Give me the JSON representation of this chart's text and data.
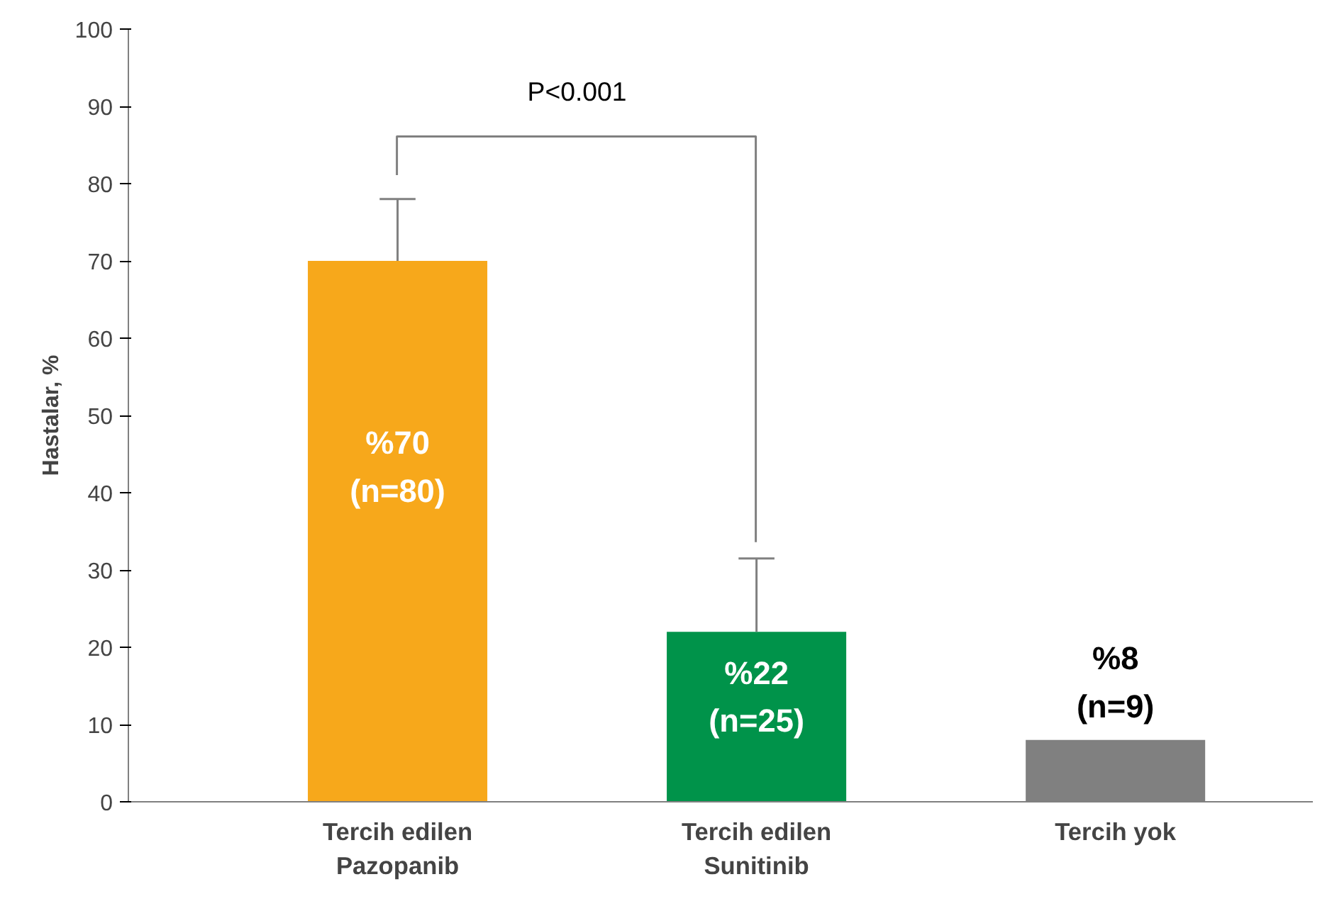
{
  "chart_data": {
    "type": "bar",
    "ylabel": "Hastalar, %",
    "categories": [
      "Tercih edilen\nPazopanib",
      "Tercih edilen\nSunitinib",
      "Tercih yok"
    ],
    "values": [
      70,
      22,
      8
    ],
    "colors": [
      "#f7a81b",
      "#00934a",
      "#808080"
    ],
    "value_labels": [
      "%70\n(n=80)",
      "%22\n(n=25)",
      "%8\n(n=9)"
    ],
    "errors": [
      [
        70,
        78
      ],
      [
        22,
        31.5
      ],
      null
    ],
    "ylim": [
      0,
      100
    ],
    "yticks": [
      0,
      10,
      20,
      30,
      40,
      50,
      60,
      70,
      80,
      90,
      100
    ],
    "grid": false,
    "annotations": [
      "P<0.001"
    ]
  }
}
